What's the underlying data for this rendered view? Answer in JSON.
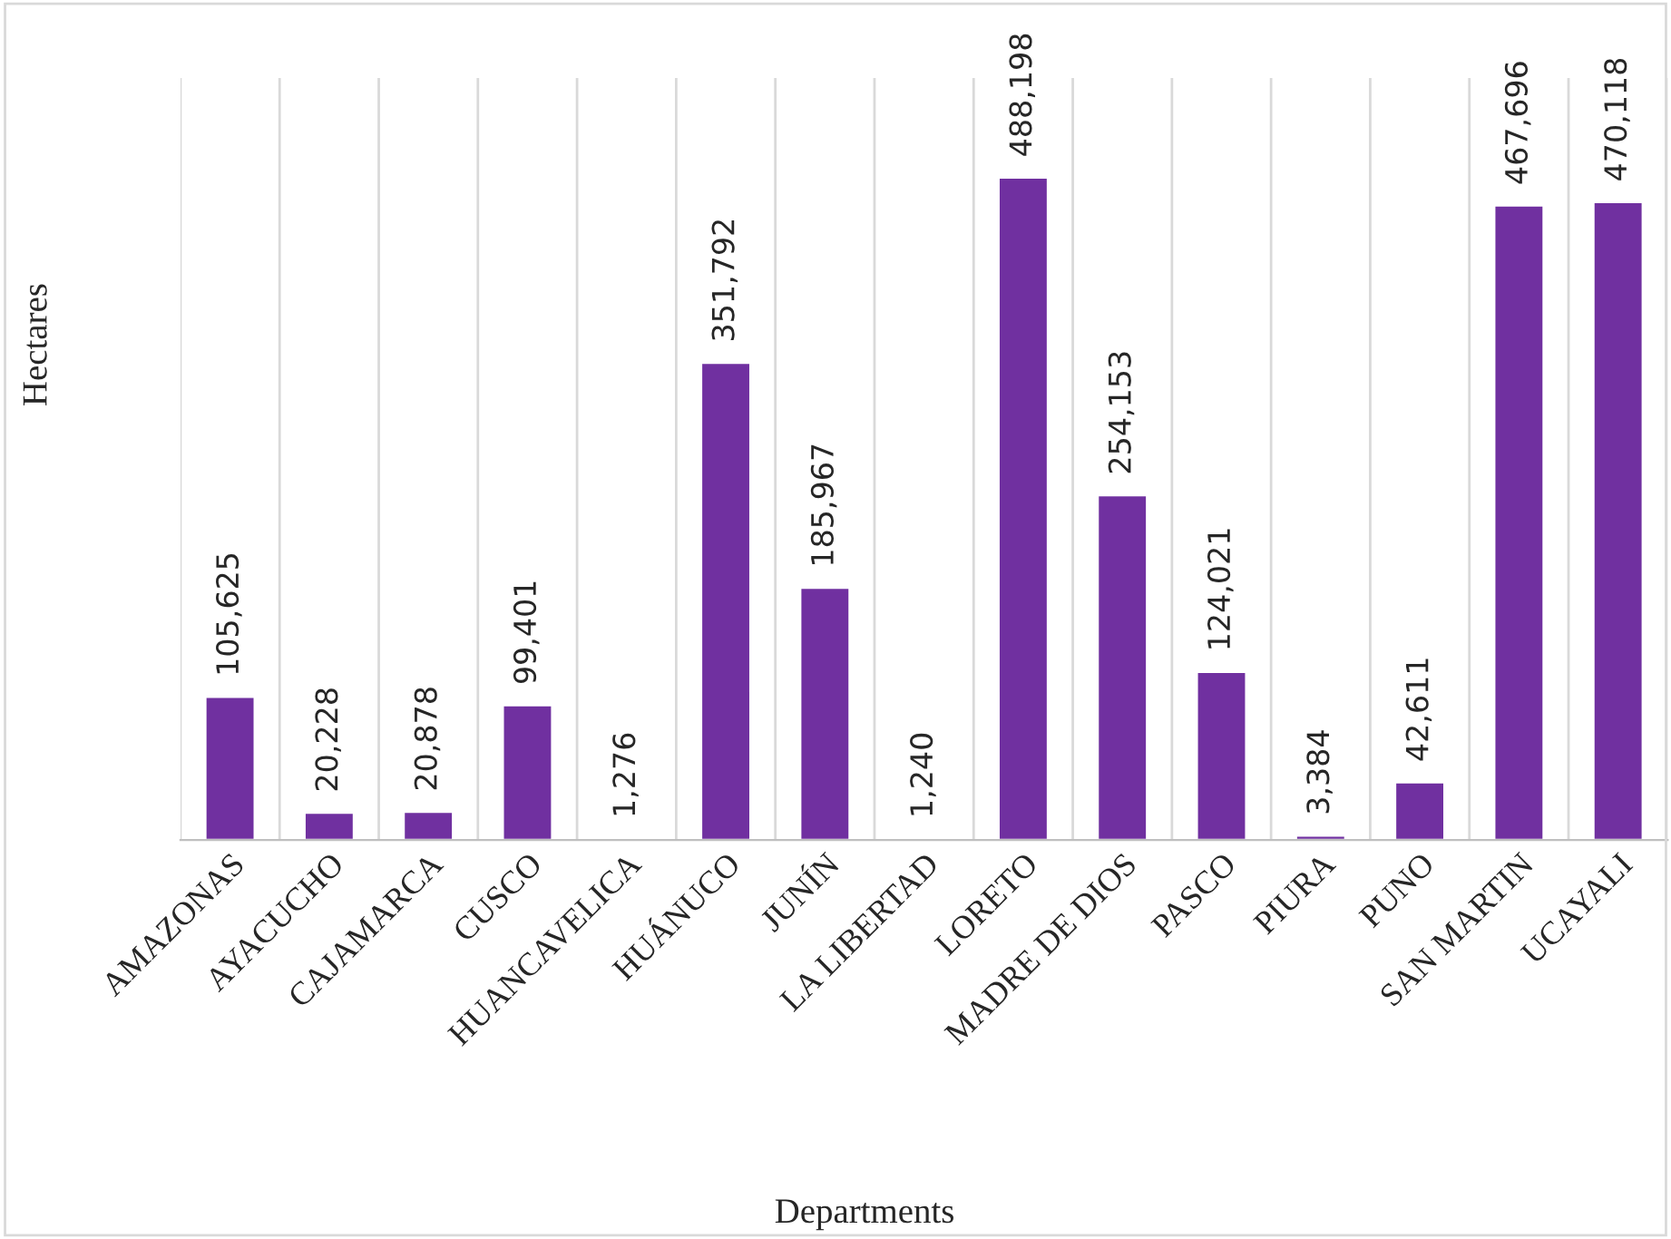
{
  "chart_data": {
    "type": "bar",
    "xlabel": "Departments",
    "ylabel": "Hectares",
    "categories": [
      "AMAZONAS",
      "AYACUCHO",
      "CAJAMARCA",
      "CUSCO",
      "HUANCAVELICA",
      "HUÁNUCO",
      "JUNÍN",
      "LA LIBERTAD",
      "LORETO",
      "MADRE DE DIOS",
      "PASCO",
      "PIURA",
      "PUNO",
      "SAN MARTIN",
      "UCAYALI"
    ],
    "values": [
      105625,
      20228,
      20878,
      99401,
      1276,
      351792,
      185967,
      1240,
      488198,
      254153,
      124021,
      3384,
      42611,
      467696,
      470118
    ],
    "value_labels": [
      "105,625",
      "20,228",
      "20,878",
      "99,401",
      "1,276",
      "351,792",
      "185,967",
      "1,240",
      "488,198",
      "254,153",
      "124,021",
      "3,384",
      "42,611",
      "467,696",
      "470,118"
    ],
    "color": "#7030a0",
    "grid": "x",
    "legend": false
  }
}
